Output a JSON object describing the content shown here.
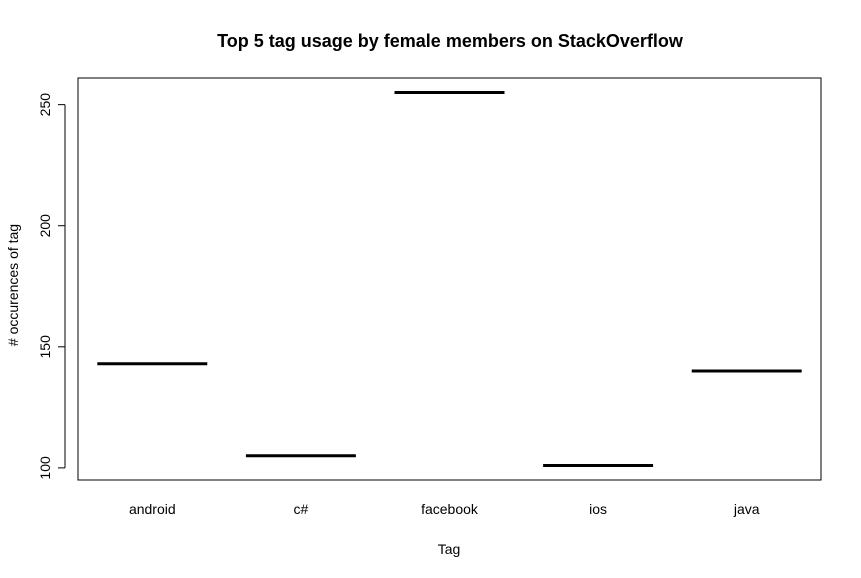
{
  "chart_data": {
    "type": "bar",
    "title": "Top 5 tag usage by female members on StackOverflow",
    "xlabel": "Tag",
    "ylabel": "# occurences of tag",
    "categories": [
      "android",
      "c#",
      "facebook",
      "ios",
      "java"
    ],
    "values": [
      143,
      105,
      255,
      101,
      140
    ],
    "ylim": [
      95,
      261
    ],
    "yticks": [
      100,
      150,
      200,
      250
    ],
    "grid": false,
    "legend": "none",
    "colors": {
      "marker": "#000000",
      "axis": "#000000",
      "background": "#ffffff"
    }
  }
}
